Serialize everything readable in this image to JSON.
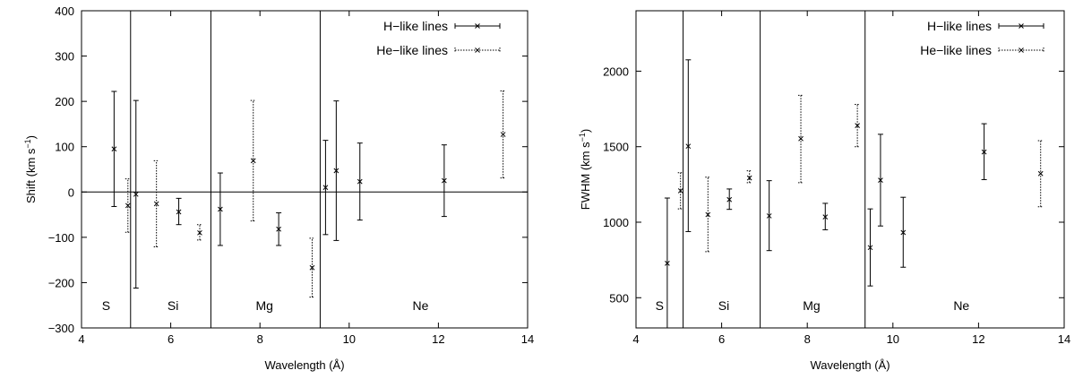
{
  "chart_data": [
    {
      "type": "scatter",
      "xlabel": "Wavelength (Å)",
      "ylabel": "Shift (km s",
      "ylabel_sup": "−1",
      "ylabel_close": ")",
      "xlim": [
        4,
        14
      ],
      "ylim": [
        -300,
        400
      ],
      "xticks": [
        4,
        6,
        8,
        10,
        12,
        14
      ],
      "yticks": [
        -300,
        -200,
        -100,
        0,
        100,
        200,
        300,
        400
      ],
      "zero_line": true,
      "separators": [
        5.1,
        6.9,
        9.35
      ],
      "regions": [
        {
          "label": "S",
          "x": 4.55
        },
        {
          "label": "Si",
          "x": 6.05
        },
        {
          "label": "Mg",
          "x": 8.1
        },
        {
          "label": "Ne",
          "x": 11.6
        }
      ],
      "legend_position": "top-right",
      "series": [
        {
          "name": "H−like lines",
          "style": "solid",
          "points": [
            {
              "x": 4.73,
              "y": 95,
              "lo": -32,
              "hi": 222
            },
            {
              "x": 5.22,
              "y": -5,
              "lo": -212,
              "hi": 202
            },
            {
              "x": 6.18,
              "y": -44,
              "lo": -72,
              "hi": -14
            },
            {
              "x": 7.11,
              "y": -38,
              "lo": -118,
              "hi": 42
            },
            {
              "x": 8.42,
              "y": -82,
              "lo": -118,
              "hi": -46
            },
            {
              "x": 9.47,
              "y": 10,
              "lo": -94,
              "hi": 114
            },
            {
              "x": 9.71,
              "y": 47,
              "lo": -107,
              "hi": 201
            },
            {
              "x": 10.24,
              "y": 23,
              "lo": -62,
              "hi": 108
            },
            {
              "x": 12.13,
              "y": 25,
              "lo": -54,
              "hi": 104
            }
          ]
        },
        {
          "name": "He−like lines",
          "style": "dotted",
          "points": [
            {
              "x": 5.04,
              "y": -30,
              "lo": -89,
              "hi": 29
            },
            {
              "x": 5.68,
              "y": -26,
              "lo": -121,
              "hi": 69
            },
            {
              "x": 6.65,
              "y": -90,
              "lo": -106,
              "hi": -72
            },
            {
              "x": 7.85,
              "y": 69,
              "lo": -64,
              "hi": 202
            },
            {
              "x": 9.17,
              "y": -167,
              "lo": -232,
              "hi": -102
            },
            {
              "x": 13.45,
              "y": 127,
              "lo": 31,
              "hi": 223
            }
          ]
        }
      ]
    },
    {
      "type": "scatter",
      "xlabel": "Wavelength (Å)",
      "ylabel": "FWHM (km s",
      "ylabel_sup": "−1",
      "ylabel_close": ")",
      "xlim": [
        4,
        14
      ],
      "ylim": [
        300,
        2400
      ],
      "xticks": [
        4,
        6,
        8,
        10,
        12,
        14
      ],
      "yticks": [
        500,
        1000,
        1500,
        2000
      ],
      "zero_line": false,
      "separators": [
        5.1,
        6.9,
        9.35
      ],
      "regions": [
        {
          "label": "S",
          "x": 4.55
        },
        {
          "label": "Si",
          "x": 6.05
        },
        {
          "label": "Mg",
          "x": 8.1
        },
        {
          "label": "Ne",
          "x": 11.6
        }
      ],
      "legend_position": "top-right",
      "series": [
        {
          "name": "H−like lines",
          "style": "solid",
          "points": [
            {
              "x": 4.73,
              "y": 728,
              "lo": 300,
              "hi": 1160
            },
            {
              "x": 5.22,
              "y": 1503,
              "lo": 938,
              "hi": 2075
            },
            {
              "x": 6.18,
              "y": 1150,
              "lo": 1085,
              "hi": 1220
            },
            {
              "x": 7.11,
              "y": 1042,
              "lo": 812,
              "hi": 1275
            },
            {
              "x": 8.42,
              "y": 1035,
              "lo": 950,
              "hi": 1125
            },
            {
              "x": 9.47,
              "y": 832,
              "lo": 578,
              "hi": 1088
            },
            {
              "x": 9.71,
              "y": 1278,
              "lo": 975,
              "hi": 1582
            },
            {
              "x": 10.24,
              "y": 932,
              "lo": 702,
              "hi": 1165
            },
            {
              "x": 12.13,
              "y": 1465,
              "lo": 1282,
              "hi": 1652
            }
          ]
        },
        {
          "name": "He−like lines",
          "style": "dotted",
          "points": [
            {
              "x": 5.04,
              "y": 1208,
              "lo": 1088,
              "hi": 1328
            },
            {
              "x": 5.68,
              "y": 1050,
              "lo": 805,
              "hi": 1298
            },
            {
              "x": 6.65,
              "y": 1293,
              "lo": 1262,
              "hi": 1340
            },
            {
              "x": 7.85,
              "y": 1553,
              "lo": 1262,
              "hi": 1840
            },
            {
              "x": 9.17,
              "y": 1640,
              "lo": 1500,
              "hi": 1780
            },
            {
              "x": 13.45,
              "y": 1322,
              "lo": 1102,
              "hi": 1540
            }
          ]
        }
      ]
    }
  ]
}
